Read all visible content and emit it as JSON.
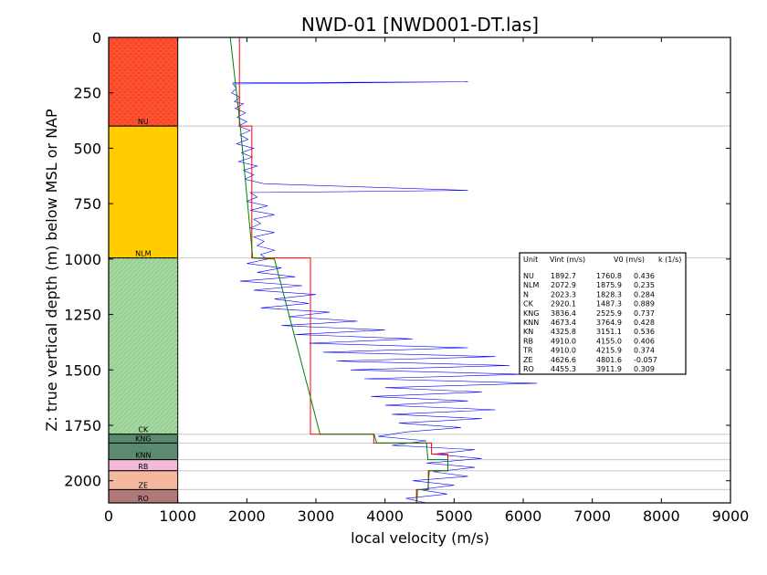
{
  "chart_data": {
    "type": "line",
    "title": "NWD-01 [NWD001-DT.las]",
    "xlabel": "local velocity (m/s)",
    "ylabel": "Z: true vertical depth (m) below MSL or NAP",
    "xlim": [
      0,
      9000
    ],
    "ylim": [
      0,
      2100
    ],
    "y_inverted": true,
    "x_ticks": [
      0,
      1000,
      2000,
      3000,
      4000,
      5000,
      6000,
      7000,
      8000,
      9000
    ],
    "y_ticks": [
      0,
      250,
      500,
      750,
      1000,
      1250,
      1500,
      1750,
      2000
    ],
    "units": [
      {
        "name": "NU",
        "top": 0,
        "base": 400,
        "color": "#ff5030",
        "pattern": "dots"
      },
      {
        "name": "NLM",
        "top": 400,
        "base": 995,
        "color": "#ffcc00",
        "pattern": "none"
      },
      {
        "name": "CK",
        "top": 995,
        "base": 1790,
        "color": "#a5d8a0",
        "pattern": "hatch"
      },
      {
        "name": "KNG",
        "top": 1790,
        "base": 1830,
        "color": "#5a8a70",
        "pattern": "none"
      },
      {
        "name": "KNN",
        "top": 1830,
        "base": 1905,
        "color": "#5a8a70",
        "pattern": "none"
      },
      {
        "name": "RB",
        "top": 1905,
        "base": 1955,
        "color": "#f4b8d8",
        "pattern": "none"
      },
      {
        "name": "ZE",
        "top": 1955,
        "base": 2040,
        "color": "#f4b8a0",
        "pattern": "none"
      },
      {
        "name": "RO",
        "top": 2040,
        "base": 2100,
        "color": "#b07878",
        "pattern": "none"
      }
    ],
    "series": [
      {
        "color": "#ff0000",
        "points": [
          [
            1892.7,
            0
          ],
          [
            1892.7,
            400
          ],
          [
            2072.9,
            400
          ],
          [
            2072.9,
            995
          ],
          [
            2920.1,
            995
          ],
          [
            2920.1,
            1790
          ],
          [
            3836.4,
            1790
          ],
          [
            3836.4,
            1830
          ],
          [
            4673.4,
            1830
          ],
          [
            4673.4,
            1880
          ],
          [
            4910,
            1880
          ],
          [
            4910,
            1905
          ],
          [
            4910,
            1955
          ],
          [
            4626.6,
            1955
          ],
          [
            4626.6,
            2040
          ],
          [
            4455.3,
            2040
          ],
          [
            4455.3,
            2100
          ]
        ]
      },
      {
        "color": "#008000",
        "points": [
          [
            1760,
            0
          ],
          [
            1905,
            400
          ],
          [
            2085,
            995
          ],
          [
            2400,
            1000
          ],
          [
            3060,
            1790
          ],
          [
            3840,
            1790
          ],
          [
            3880,
            1830
          ],
          [
            4600,
            1830
          ],
          [
            4620,
            1905
          ],
          [
            4910,
            1905
          ],
          [
            4910,
            1955
          ],
          [
            4640,
            1955
          ],
          [
            4620,
            2040
          ],
          [
            4470,
            2040
          ],
          [
            4460,
            2100
          ]
        ]
      },
      {
        "color": "#0000ff",
        "points": [
          [
            1790,
            205
          ],
          [
            5200,
            200
          ],
          [
            1800,
            210
          ],
          [
            1850,
            230
          ],
          [
            1780,
            250
          ],
          [
            1900,
            270
          ],
          [
            1820,
            290
          ],
          [
            1950,
            300
          ],
          [
            1830,
            320
          ],
          [
            1980,
            340
          ],
          [
            1860,
            360
          ],
          [
            2000,
            380
          ],
          [
            1880,
            400
          ],
          [
            2050,
            420
          ],
          [
            1900,
            440
          ],
          [
            2020,
            460
          ],
          [
            1850,
            480
          ],
          [
            2100,
            500
          ],
          [
            1920,
            520
          ],
          [
            2080,
            540
          ],
          [
            1880,
            560
          ],
          [
            2150,
            580
          ],
          [
            1950,
            600
          ],
          [
            2100,
            620
          ],
          [
            1970,
            640
          ],
          [
            2250,
            660
          ],
          [
            5200,
            690
          ],
          [
            2050,
            700
          ],
          [
            2150,
            720
          ],
          [
            2000,
            740
          ],
          [
            2300,
            760
          ],
          [
            2050,
            780
          ],
          [
            2400,
            800
          ],
          [
            2100,
            820
          ],
          [
            2200,
            840
          ],
          [
            2050,
            860
          ],
          [
            2400,
            880
          ],
          [
            2100,
            900
          ],
          [
            2250,
            920
          ],
          [
            2150,
            940
          ],
          [
            2400,
            960
          ],
          [
            2200,
            980
          ],
          [
            2300,
            1000
          ],
          [
            2000,
            1020
          ],
          [
            2500,
            1040
          ],
          [
            2150,
            1060
          ],
          [
            2700,
            1080
          ],
          [
            1900,
            1100
          ],
          [
            2800,
            1120
          ],
          [
            2100,
            1140
          ],
          [
            3000,
            1160
          ],
          [
            2400,
            1180
          ],
          [
            2900,
            1200
          ],
          [
            2200,
            1220
          ],
          [
            3200,
            1240
          ],
          [
            2600,
            1260
          ],
          [
            3600,
            1280
          ],
          [
            2500,
            1300
          ],
          [
            4000,
            1320
          ],
          [
            2700,
            1340
          ],
          [
            4400,
            1360
          ],
          [
            2900,
            1380
          ],
          [
            5200,
            1400
          ],
          [
            3100,
            1420
          ],
          [
            5600,
            1440
          ],
          [
            3300,
            1460
          ],
          [
            5800,
            1480
          ],
          [
            3500,
            1500
          ],
          [
            6000,
            1520
          ],
          [
            3700,
            1540
          ],
          [
            6200,
            1560
          ],
          [
            4000,
            1580
          ],
          [
            5400,
            1600
          ],
          [
            3800,
            1620
          ],
          [
            5200,
            1640
          ],
          [
            4000,
            1660
          ],
          [
            5600,
            1680
          ],
          [
            4100,
            1700
          ],
          [
            5400,
            1720
          ],
          [
            4200,
            1740
          ],
          [
            5100,
            1760
          ],
          [
            4300,
            1780
          ],
          [
            3900,
            1800
          ],
          [
            4600,
            1820
          ],
          [
            4100,
            1840
          ],
          [
            5300,
            1860
          ],
          [
            4700,
            1880
          ],
          [
            5400,
            1900
          ],
          [
            4600,
            1920
          ],
          [
            5300,
            1940
          ],
          [
            4700,
            1960
          ],
          [
            5200,
            1980
          ],
          [
            4400,
            2000
          ],
          [
            5000,
            2020
          ],
          [
            4500,
            2040
          ],
          [
            4900,
            2060
          ],
          [
            4300,
            2080
          ],
          [
            4600,
            2100
          ]
        ]
      }
    ],
    "table": {
      "header": [
        "Unit",
        "Vint (m/s)",
        "V0 (m/s)",
        "k (1/s)"
      ],
      "rows": [
        [
          "NU",
          "1892.7",
          "1760.8",
          "0.436"
        ],
        [
          "NLM",
          "2072.9",
          "1875.9",
          "0.235"
        ],
        [
          "N",
          "2023.3",
          "1828.3",
          "0.284"
        ],
        [
          "CK",
          "2920.1",
          "1487.3",
          "0.889"
        ],
        [
          "KNG",
          "3836.4",
          "2525.9",
          "0.737"
        ],
        [
          "KNN",
          "4673.4",
          "3764.9",
          "0.428"
        ],
        [
          "KN",
          "4325.8",
          "3151.1",
          "0.536"
        ],
        [
          "RB",
          "4910.0",
          "4155.0",
          "0.406"
        ],
        [
          "TR",
          "4910.0",
          "4215.9",
          "0.374"
        ],
        [
          "ZE",
          "4626.6",
          "4801.6",
          "-0.057"
        ],
        [
          "RO",
          "4455.3",
          "3911.9",
          "0.309"
        ]
      ]
    }
  }
}
